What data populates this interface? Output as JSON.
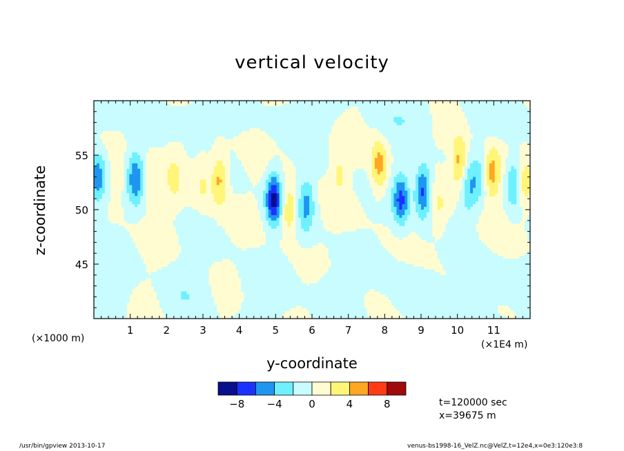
{
  "chart_data": {
    "type": "heatmap",
    "title": "vertical velocity",
    "xlabel": "y-coordinate",
    "ylabel": "z-coordinate",
    "x_unit_left": "(×1000 m)",
    "x_unit_right": "(×1E4 m)",
    "xlim": [
      0,
      12
    ],
    "ylim": [
      40,
      60
    ],
    "xticks": [
      1,
      2,
      3,
      4,
      5,
      6,
      7,
      8,
      9,
      10,
      11
    ],
    "yticks": [
      45,
      50,
      55
    ],
    "colorbar": {
      "levels": [
        -10,
        -8,
        -6,
        -4,
        -2,
        0,
        2,
        4,
        6,
        8,
        10
      ],
      "tick_labels": [
        "−8",
        "−4",
        "0",
        "4",
        "8"
      ],
      "tick_values": [
        -8,
        -4,
        0,
        4,
        8
      ],
      "colors": [
        "#0a0f8c",
        "#1a32ff",
        "#1e96f0",
        "#6ef0ff",
        "#c8fcff",
        "#fffcd2",
        "#fff578",
        "#ffa623",
        "#ff3c14",
        "#a00a0a"
      ]
    },
    "features": [
      {
        "y": 0.1,
        "z": 52.8,
        "value": -5.5
      },
      {
        "y": 1.15,
        "z": 53.0,
        "value": -5.2
      },
      {
        "y": 0.65,
        "z": 53.0,
        "value": 2.0
      },
      {
        "y": 1.6,
        "z": 52.2,
        "value": 1.8
      },
      {
        "y": 2.2,
        "z": 53.0,
        "value": 2.0
      },
      {
        "y": 3.45,
        "z": 52.8,
        "value": 4.8
      },
      {
        "y": 3.0,
        "z": 52.5,
        "value": 2.2
      },
      {
        "y": 4.95,
        "z": 51.0,
        "value": -8.5
      },
      {
        "y": 5.35,
        "z": 50.0,
        "value": 4.0
      },
      {
        "y": 5.85,
        "z": 50.5,
        "value": -4.5
      },
      {
        "y": 6.75,
        "z": 53.5,
        "value": 2.2
      },
      {
        "y": 7.85,
        "z": 54.0,
        "value": 5.0
      },
      {
        "y": 8.45,
        "z": 51.0,
        "value": -6.5
      },
      {
        "y": 9.05,
        "z": 51.8,
        "value": -7.0
      },
      {
        "y": 9.5,
        "z": 50.0,
        "value": 2.0
      },
      {
        "y": 10.05,
        "z": 54.3,
        "value": 5.0
      },
      {
        "y": 10.3,
        "z": 51.8,
        "value": -3.5
      },
      {
        "y": 10.6,
        "z": 53.0,
        "value": -2.5
      },
      {
        "y": 10.95,
        "z": 53.3,
        "value": 5.0
      },
      {
        "y": 11.55,
        "z": 52.5,
        "value": -4.5
      },
      {
        "y": 11.85,
        "z": 52.2,
        "value": 3.0
      }
    ]
  },
  "annotations": {
    "time": "t=120000 sec",
    "xpos": "x=39675 m"
  },
  "footer": {
    "left": "/usr/bin/gpview  2013-10-17",
    "right": "venus-bs1998-16_VelZ.nc@VelZ,t=12e4,x=0e3:120e3:8"
  }
}
